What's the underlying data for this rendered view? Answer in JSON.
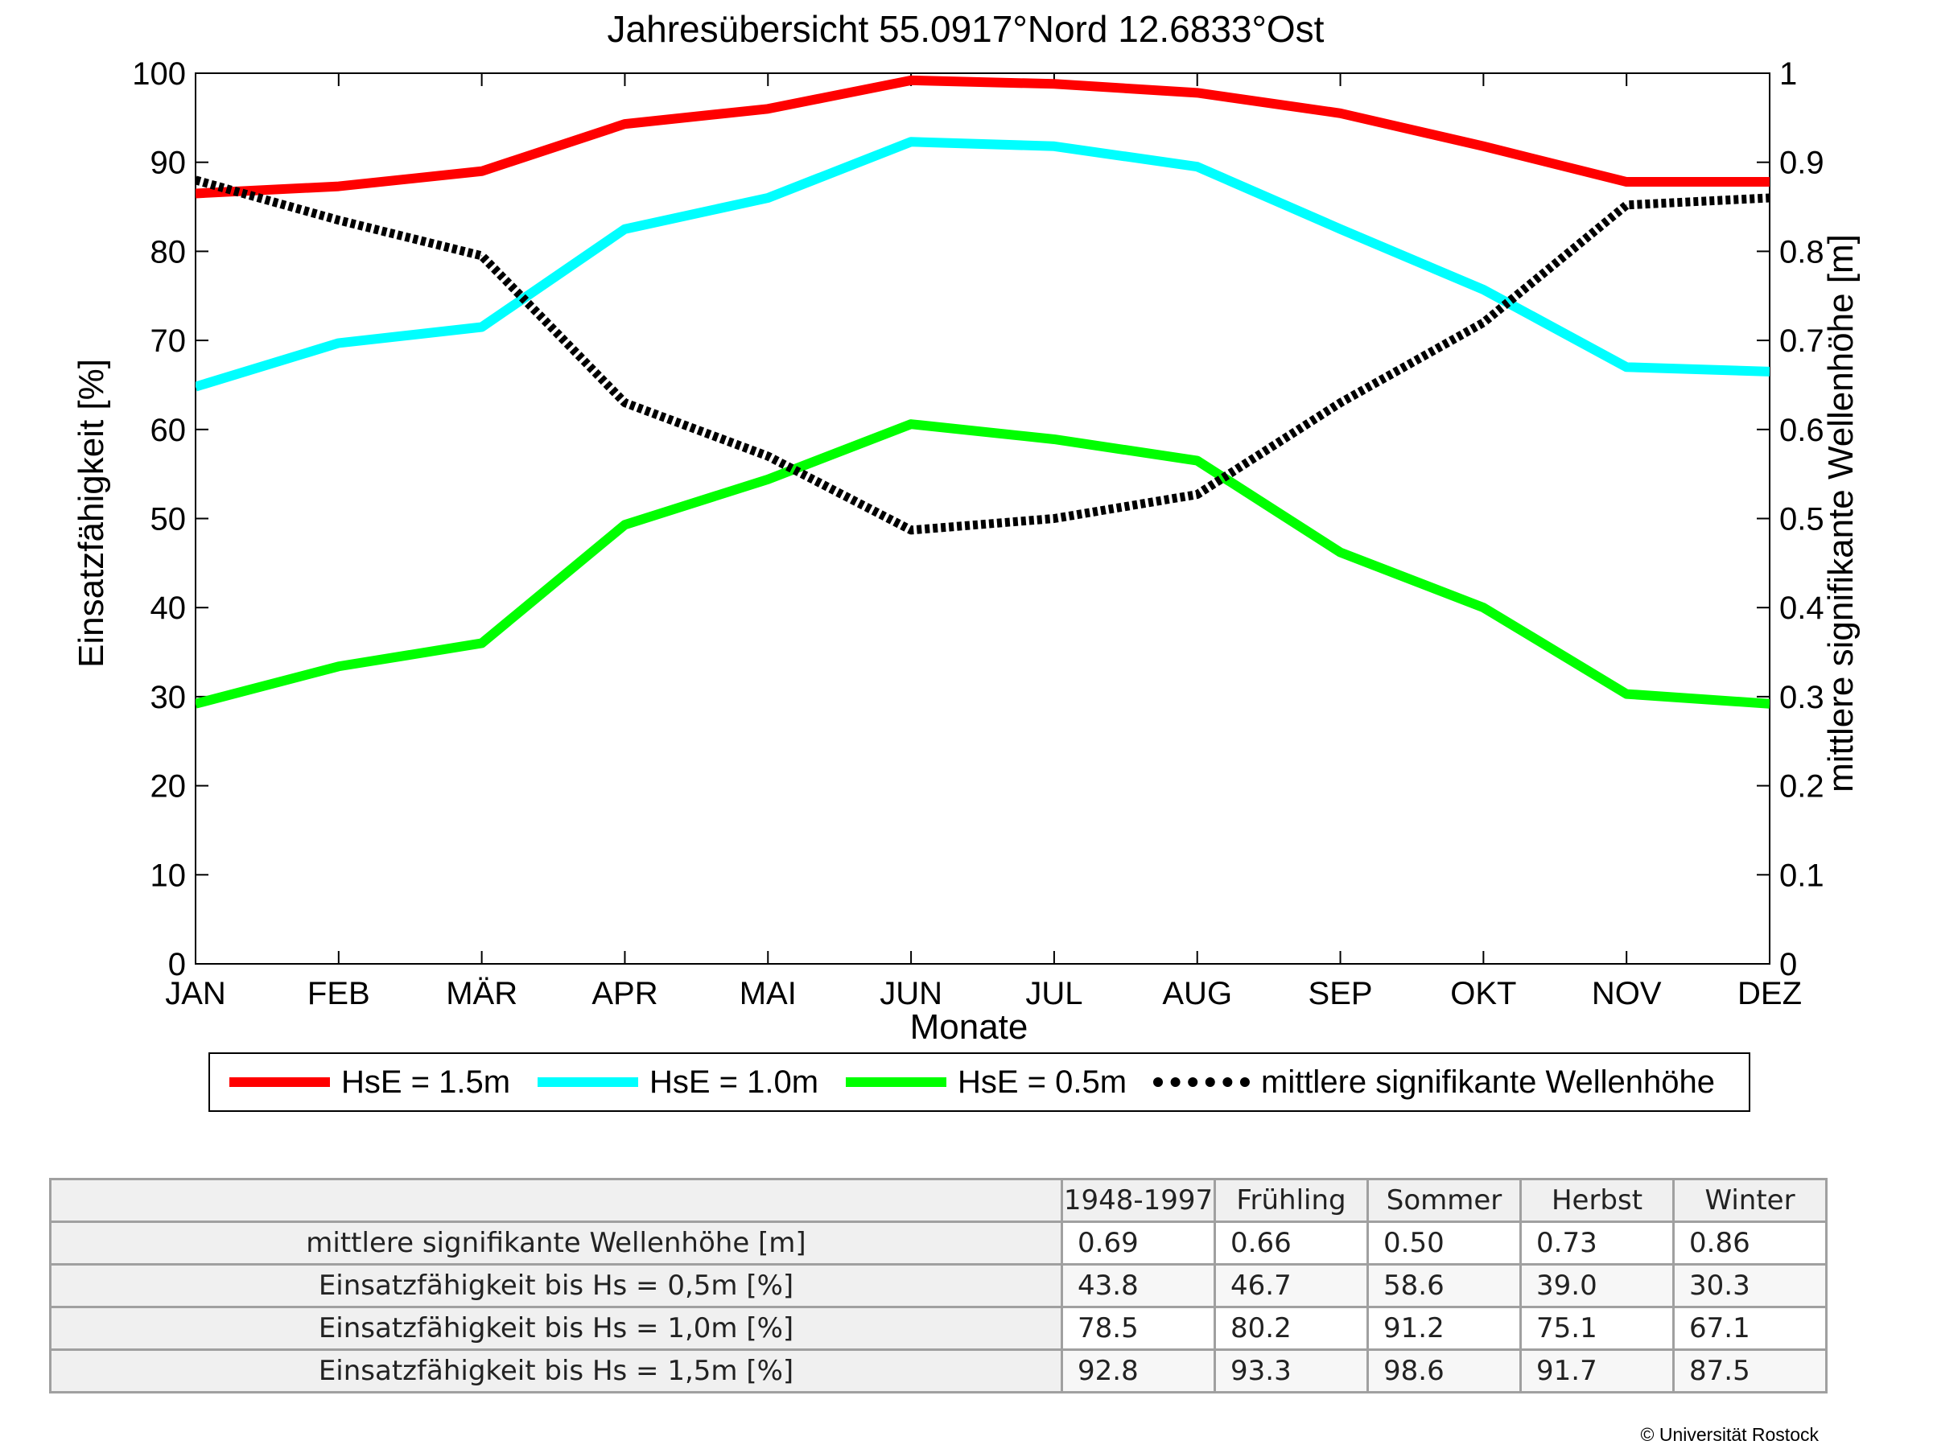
{
  "chart_data": {
    "type": "line",
    "title": "Jahresübersicht  55.0917°Nord  12.6833°Ost",
    "xlabel": "Monate",
    "ylabel_left": "Einsatzfähigkeit [%]",
    "ylabel_right": "mittlere signifikante Wellenhöhe [m]",
    "ylim_left": [
      0,
      100
    ],
    "ylim_right": [
      0,
      1
    ],
    "yticks_left": [
      "0",
      "10",
      "20",
      "30",
      "40",
      "50",
      "60",
      "70",
      "80",
      "90",
      "100"
    ],
    "yticks_right": [
      "0",
      "0.1",
      "0.2",
      "0.3",
      "0.4",
      "0.5",
      "0.6",
      "0.7",
      "0.8",
      "0.9",
      "1"
    ],
    "categories": [
      "JAN",
      "FEB",
      "MÄR",
      "APR",
      "MAI",
      "JUN",
      "JUL",
      "AUG",
      "SEP",
      "OKT",
      "NOV",
      "DEZ"
    ],
    "grid": false,
    "legend_position": "bottom",
    "series": [
      {
        "name": "HsE = 1.5m",
        "axis": "left",
        "color": "#ff0000",
        "style": "solid",
        "values": [
          86.5,
          87.3,
          89.0,
          94.3,
          96.0,
          99.2,
          98.8,
          97.8,
          95.5,
          91.8,
          87.8,
          87.8
        ]
      },
      {
        "name": "HsE = 1.0m",
        "axis": "left",
        "color": "#00ffff",
        "style": "solid",
        "values": [
          64.8,
          69.7,
          71.5,
          82.5,
          86.0,
          92.3,
          91.8,
          89.5,
          82.5,
          75.7,
          67.0,
          66.5
        ]
      },
      {
        "name": "HsE = 0.5m",
        "axis": "left",
        "color": "#00ff00",
        "style": "solid",
        "values": [
          29.2,
          33.4,
          36.0,
          49.3,
          54.4,
          60.6,
          58.9,
          56.5,
          46.2,
          40.0,
          30.3,
          29.2
        ]
      },
      {
        "name": "mittlere signifikante Wellenhöhe",
        "axis": "right",
        "color": "#000000",
        "style": "dotted",
        "values": [
          0.88,
          0.835,
          0.795,
          0.63,
          0.57,
          0.487,
          0.5,
          0.527,
          0.63,
          0.72,
          0.852,
          0.86
        ]
      }
    ]
  },
  "table": {
    "headers": [
      "1948-1997",
      "Frühling",
      "Sommer",
      "Herbst",
      "Winter"
    ],
    "rows": [
      {
        "label": "mittlere signifikante Wellenhöhe [m]",
        "values": [
          "0.69",
          "0.66",
          "0.50",
          "0.73",
          "0.86"
        ]
      },
      {
        "label": "Einsatzfähigkeit bis Hs = 0,5m [%]",
        "values": [
          "43.8",
          "46.7",
          "58.6",
          "39.0",
          "30.3"
        ]
      },
      {
        "label": "Einsatzfähigkeit bis Hs = 1,0m [%]",
        "values": [
          "78.5",
          "80.2",
          "91.2",
          "75.1",
          "67.1"
        ]
      },
      {
        "label": "Einsatzfähigkeit bis Hs = 1,5m [%]",
        "values": [
          "92.8",
          "93.3",
          "98.6",
          "91.7",
          "87.5"
        ]
      }
    ]
  },
  "copyright": "© Universität Rostock"
}
